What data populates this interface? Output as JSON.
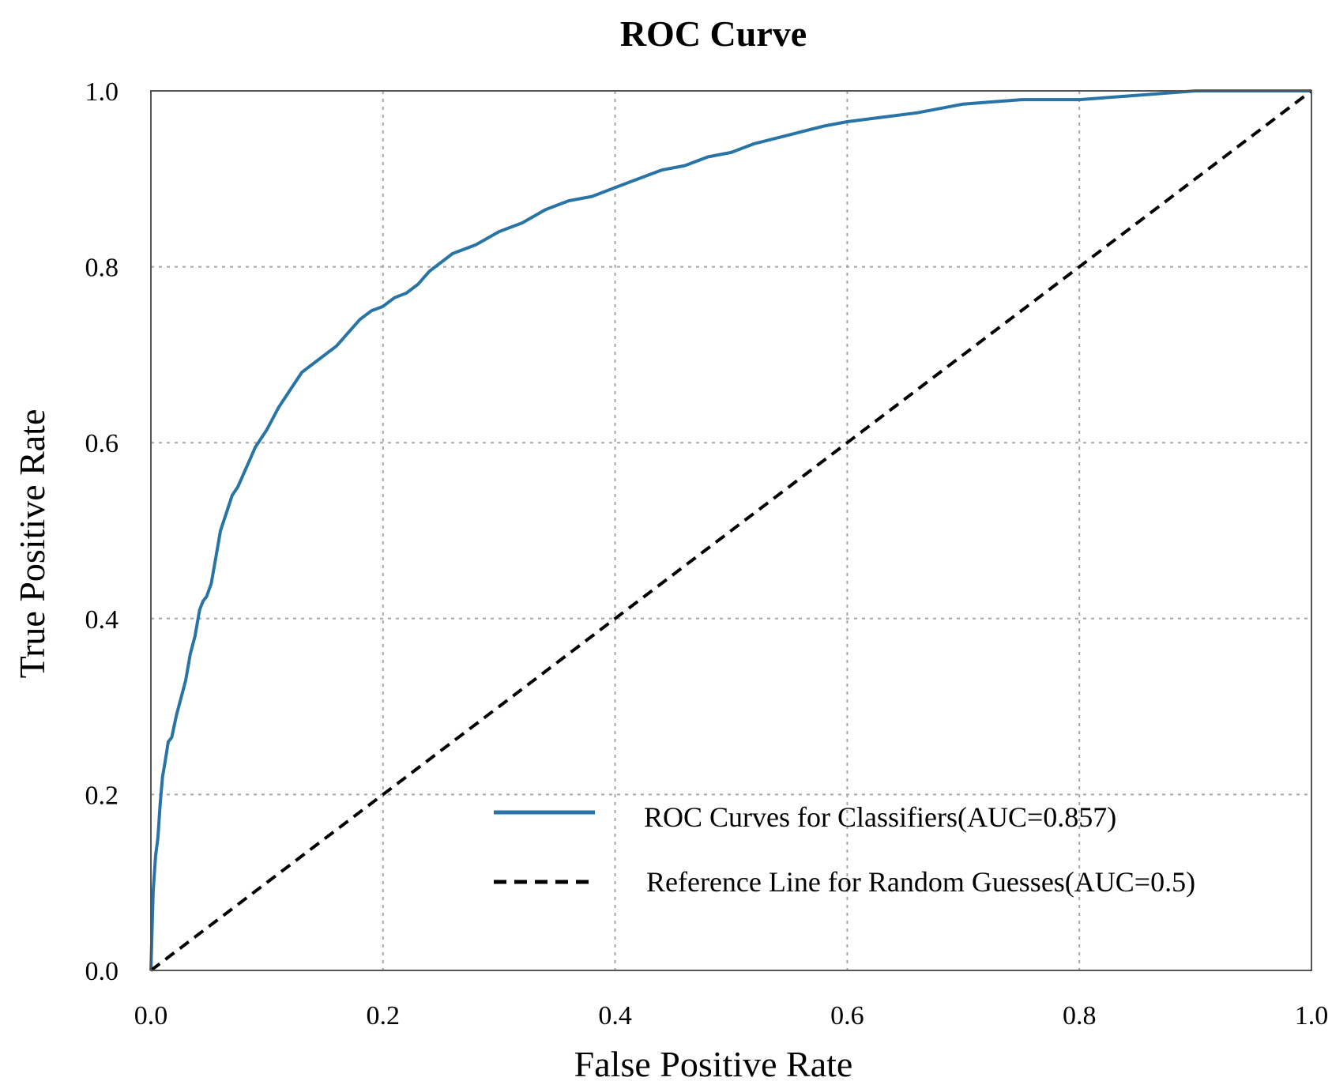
{
  "chart_data": {
    "type": "line",
    "title": "ROC Curve",
    "xlabel": "False Positive Rate",
    "ylabel": "True Positive Rate",
    "xlim": [
      0,
      1
    ],
    "ylim": [
      0,
      1
    ],
    "x_ticks": [
      "0.0",
      "0.2",
      "0.4",
      "0.6",
      "0.8",
      "1.0"
    ],
    "y_ticks": [
      "0.0",
      "0.2",
      "0.4",
      "0.6",
      "0.8",
      "1.0"
    ],
    "grid": true,
    "legend_position": "bottom-right",
    "series": [
      {
        "name": "ROC Curves for Classifiers(AUC=0.857)",
        "style": "solid",
        "color": "#2874a6",
        "x": [
          0.0,
          0.002,
          0.004,
          0.006,
          0.008,
          0.01,
          0.012,
          0.015,
          0.018,
          0.022,
          0.026,
          0.03,
          0.034,
          0.038,
          0.042,
          0.045,
          0.048,
          0.052,
          0.056,
          0.06,
          0.065,
          0.07,
          0.075,
          0.08,
          0.085,
          0.09,
          0.095,
          0.1,
          0.11,
          0.12,
          0.13,
          0.14,
          0.15,
          0.16,
          0.17,
          0.18,
          0.19,
          0.2,
          0.21,
          0.22,
          0.23,
          0.24,
          0.25,
          0.26,
          0.28,
          0.3,
          0.32,
          0.34,
          0.36,
          0.38,
          0.4,
          0.42,
          0.44,
          0.46,
          0.48,
          0.5,
          0.52,
          0.55,
          0.58,
          0.6,
          0.63,
          0.66,
          0.7,
          0.75,
          0.8,
          0.85,
          0.9,
          0.95,
          1.0
        ],
        "y": [
          0.0,
          0.09,
          0.13,
          0.15,
          0.19,
          0.22,
          0.235,
          0.26,
          0.265,
          0.29,
          0.31,
          0.33,
          0.36,
          0.38,
          0.41,
          0.42,
          0.425,
          0.44,
          0.47,
          0.5,
          0.52,
          0.54,
          0.55,
          0.565,
          0.58,
          0.595,
          0.605,
          0.615,
          0.64,
          0.66,
          0.68,
          0.69,
          0.7,
          0.71,
          0.725,
          0.74,
          0.75,
          0.755,
          0.765,
          0.77,
          0.78,
          0.795,
          0.805,
          0.815,
          0.825,
          0.84,
          0.85,
          0.865,
          0.875,
          0.88,
          0.89,
          0.9,
          0.91,
          0.915,
          0.925,
          0.93,
          0.94,
          0.95,
          0.96,
          0.965,
          0.97,
          0.975,
          0.985,
          0.99,
          0.99,
          0.995,
          1.0,
          1.0,
          1.0
        ]
      },
      {
        "name": "Reference Line for Random Guesses(AUC=0.5)",
        "style": "dashed",
        "color": "#000000",
        "x": [
          0.0,
          1.0
        ],
        "y": [
          0.0,
          1.0
        ]
      }
    ]
  }
}
